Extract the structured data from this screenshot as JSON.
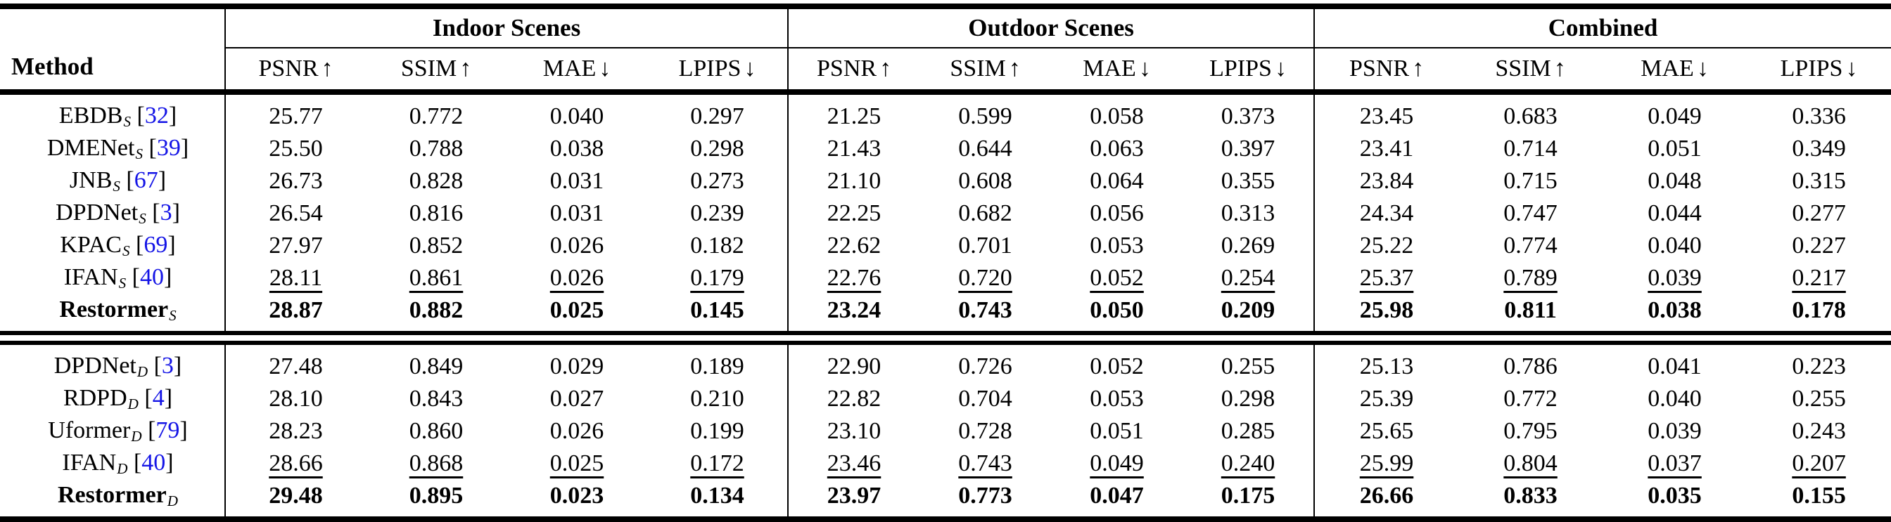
{
  "table": {
    "method_header": "Method",
    "citation_color": "#1515E6",
    "text_color": "#000000",
    "groups": [
      {
        "title": "Indoor Scenes"
      },
      {
        "title": "Outdoor Scenes"
      },
      {
        "title": "Combined"
      }
    ],
    "metrics": [
      {
        "label": "PSNR",
        "arrow": "↑"
      },
      {
        "label": "SSIM",
        "arrow": "↑"
      },
      {
        "label": "MAE",
        "arrow": "↓"
      },
      {
        "label": "LPIPS",
        "arrow": "↓"
      }
    ],
    "sections": [
      {
        "rows": [
          {
            "method": "EBDB",
            "subscript": "S",
            "citation": "32",
            "style": "normal",
            "indoor": [
              "25.77",
              "0.772",
              "0.040",
              "0.297"
            ],
            "outdoor": [
              "21.25",
              "0.599",
              "0.058",
              "0.373"
            ],
            "combined": [
              "23.45",
              "0.683",
              "0.049",
              "0.336"
            ]
          },
          {
            "method": "DMENet",
            "subscript": "S",
            "citation": "39",
            "style": "normal",
            "indoor": [
              "25.50",
              "0.788",
              "0.038",
              "0.298"
            ],
            "outdoor": [
              "21.43",
              "0.644",
              "0.063",
              "0.397"
            ],
            "combined": [
              "23.41",
              "0.714",
              "0.051",
              "0.349"
            ]
          },
          {
            "method": "JNB",
            "subscript": "S",
            "citation": "67",
            "style": "normal",
            "indoor": [
              "26.73",
              "0.828",
              "0.031",
              "0.273"
            ],
            "outdoor": [
              "21.10",
              "0.608",
              "0.064",
              "0.355"
            ],
            "combined": [
              "23.84",
              "0.715",
              "0.048",
              "0.315"
            ]
          },
          {
            "method": "DPDNet",
            "subscript": "S",
            "citation": "3",
            "style": "normal",
            "indoor": [
              "26.54",
              "0.816",
              "0.031",
              "0.239"
            ],
            "outdoor": [
              "22.25",
              "0.682",
              "0.056",
              "0.313"
            ],
            "combined": [
              "24.34",
              "0.747",
              "0.044",
              "0.277"
            ]
          },
          {
            "method": "KPAC",
            "subscript": "S",
            "citation": "69",
            "style": "normal",
            "indoor": [
              "27.97",
              "0.852",
              "0.026",
              "0.182"
            ],
            "outdoor": [
              "22.62",
              "0.701",
              "0.053",
              "0.269"
            ],
            "combined": [
              "25.22",
              "0.774",
              "0.040",
              "0.227"
            ]
          },
          {
            "method": "IFAN",
            "subscript": "S",
            "citation": "40",
            "style": "underline",
            "indoor": [
              "28.11",
              "0.861",
              "0.026",
              "0.179"
            ],
            "outdoor": [
              "22.76",
              "0.720",
              "0.052",
              "0.254"
            ],
            "combined": [
              "25.37",
              "0.789",
              "0.039",
              "0.217"
            ]
          },
          {
            "method": "Restormer",
            "subscript": "S",
            "citation": null,
            "style": "bold",
            "indoor": [
              "28.87",
              "0.882",
              "0.025",
              "0.145"
            ],
            "outdoor": [
              "23.24",
              "0.743",
              "0.050",
              "0.209"
            ],
            "combined": [
              "25.98",
              "0.811",
              "0.038",
              "0.178"
            ]
          }
        ]
      },
      {
        "rows": [
          {
            "method": "DPDNet",
            "subscript": "D",
            "citation": "3",
            "style": "normal",
            "indoor": [
              "27.48",
              "0.849",
              "0.029",
              "0.189"
            ],
            "outdoor": [
              "22.90",
              "0.726",
              "0.052",
              "0.255"
            ],
            "combined": [
              "25.13",
              "0.786",
              "0.041",
              "0.223"
            ]
          },
          {
            "method": "RDPD",
            "subscript": "D",
            "citation": "4",
            "style": "normal",
            "indoor": [
              "28.10",
              "0.843",
              "0.027",
              "0.210"
            ],
            "outdoor": [
              "22.82",
              "0.704",
              "0.053",
              "0.298"
            ],
            "combined": [
              "25.39",
              "0.772",
              "0.040",
              "0.255"
            ]
          },
          {
            "method": "Uformer",
            "subscript": "D",
            "citation": "79",
            "style": "normal",
            "indoor": [
              "28.23",
              "0.860",
              "0.026",
              "0.199"
            ],
            "outdoor": [
              "23.10",
              "0.728",
              "0.051",
              "0.285"
            ],
            "combined": [
              "25.65",
              "0.795",
              "0.039",
              "0.243"
            ]
          },
          {
            "method": "IFAN",
            "subscript": "D",
            "citation": "40",
            "style": "underline",
            "indoor": [
              "28.66",
              "0.868",
              "0.025",
              "0.172"
            ],
            "outdoor": [
              "23.46",
              "0.743",
              "0.049",
              "0.240"
            ],
            "combined": [
              "25.99",
              "0.804",
              "0.037",
              "0.207"
            ]
          },
          {
            "method": "Restormer",
            "subscript": "D",
            "citation": null,
            "style": "bold",
            "indoor": [
              "29.48",
              "0.895",
              "0.023",
              "0.134"
            ],
            "outdoor": [
              "23.97",
              "0.773",
              "0.047",
              "0.175"
            ],
            "combined": [
              "26.66",
              "0.833",
              "0.035",
              "0.155"
            ]
          }
        ]
      }
    ]
  }
}
